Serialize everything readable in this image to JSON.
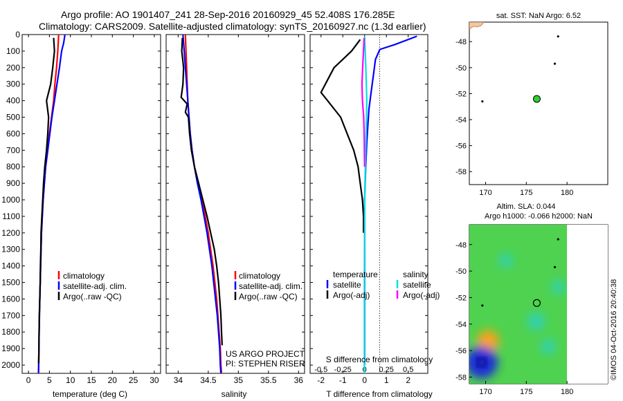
{
  "header": {
    "line1": "Argo profile: AO 1901407_241 28-Sep-2016 20160929_45 52.408S 176.285E",
    "line2": "Climatology: CARS2009. Satellite-adjusted climatology: synTS_20160927.nc (1.3d earlier)"
  },
  "colors": {
    "climatology": "#ff0000",
    "satellite": "#0000ff",
    "argo": "#000000",
    "salinity_satellite": "#00e0e0",
    "salinity_argo": "#ff00ff",
    "float_marker": "#33cc33"
  },
  "chart_data": [
    {
      "type": "line",
      "panel": "temperature",
      "xlabel": "temperature (deg C)",
      "ylabel": "",
      "xlim": [
        -1.5,
        31.5
      ],
      "ylim": [
        2050,
        0
      ],
      "xticks": [
        "0",
        "5",
        "10",
        "15",
        "20",
        "25",
        "30"
      ],
      "yticks": [
        "0",
        "100",
        "200",
        "300",
        "400",
        "500",
        "600",
        "700",
        "800",
        "900",
        "1000",
        "1100",
        "1200",
        "1300",
        "1400",
        "1500",
        "1600",
        "1700",
        "1800",
        "1900",
        "2000"
      ],
      "legend": [
        "climatology",
        "satellite-adj. clim.",
        "Argo(..raw -QC)"
      ],
      "series": [
        {
          "name": "climatology",
          "color": "#ff0000",
          "points": [
            [
              7.2,
              0
            ],
            [
              7.0,
              100
            ],
            [
              6.7,
              200
            ],
            [
              6.3,
              300
            ],
            [
              6.0,
              400
            ],
            [
              5.5,
              500
            ],
            [
              5.0,
              600
            ],
            [
              4.6,
              700
            ],
            [
              4.1,
              800
            ],
            [
              3.8,
              900
            ],
            [
              3.5,
              1000
            ],
            [
              3.3,
              1100
            ],
            [
              3.1,
              1200
            ],
            [
              3.0,
              1300
            ],
            [
              2.9,
              1400
            ],
            [
              2.8,
              1500
            ],
            [
              2.7,
              1600
            ],
            [
              2.6,
              1700
            ],
            [
              2.55,
              1800
            ],
            [
              2.5,
              1900
            ],
            [
              2.45,
              2000
            ],
            [
              2.4,
              2050
            ]
          ]
        },
        {
          "name": "satellite-adj. clim.",
          "color": "#0000ff",
          "points": [
            [
              8.7,
              0
            ],
            [
              8.4,
              50
            ],
            [
              7.9,
              100
            ],
            [
              7.4,
              200
            ],
            [
              6.8,
              300
            ],
            [
              6.2,
              400
            ],
            [
              5.6,
              500
            ],
            [
              5.1,
              600
            ],
            [
              4.6,
              700
            ],
            [
              4.1,
              800
            ],
            [
              3.8,
              900
            ],
            [
              3.5,
              1000
            ],
            [
              3.3,
              1100
            ],
            [
              3.1,
              1200
            ],
            [
              3.0,
              1300
            ],
            [
              2.9,
              1400
            ],
            [
              2.8,
              1500
            ],
            [
              2.7,
              1600
            ],
            [
              2.6,
              1700
            ],
            [
              2.55,
              1800
            ],
            [
              2.5,
              1900
            ],
            [
              2.45,
              2000
            ],
            [
              2.4,
              2050
            ]
          ]
        },
        {
          "name": "Argo(..raw -QC)",
          "color": "#000000",
          "points": [
            [
              6.0,
              20
            ],
            [
              6.2,
              100
            ],
            [
              5.8,
              200
            ],
            [
              5.3,
              300
            ],
            [
              4.3,
              400
            ],
            [
              4.8,
              500
            ],
            [
              4.6,
              600
            ],
            [
              4.3,
              700
            ],
            [
              3.9,
              800
            ],
            [
              3.6,
              900
            ],
            [
              3.4,
              1000
            ],
            [
              3.2,
              1100
            ],
            [
              3.0,
              1200
            ],
            [
              2.95,
              1300
            ],
            [
              2.85,
              1400
            ],
            [
              2.8,
              1500
            ],
            [
              2.7,
              1600
            ],
            [
              2.62,
              1700
            ],
            [
              2.55,
              1800
            ],
            [
              2.5,
              1900
            ],
            [
              2.45,
              1990
            ]
          ]
        }
      ]
    },
    {
      "type": "line",
      "panel": "salinity",
      "xlabel": "salinity",
      "ylabel": "",
      "xlim": [
        33.8,
        36.1
      ],
      "ylim": [
        2050,
        0
      ],
      "xticks": [
        "34",
        "34.5",
        "35",
        "35.5",
        "36"
      ],
      "legend": [
        "climatology",
        "satellite-adj. clim.",
        "Argo(..raw -QC)"
      ],
      "annotations": [
        "US ARGO PROJECT",
        "PI: STEPHEN RISER"
      ],
      "series": [
        {
          "name": "climatology",
          "color": "#ff0000",
          "points": [
            [
              34.12,
              0
            ],
            [
              34.13,
              100
            ],
            [
              34.14,
              200
            ],
            [
              34.15,
              300
            ],
            [
              34.16,
              400
            ],
            [
              34.18,
              500
            ],
            [
              34.2,
              600
            ],
            [
              34.23,
              700
            ],
            [
              34.27,
              800
            ],
            [
              34.33,
              900
            ],
            [
              34.39,
              1000
            ],
            [
              34.45,
              1100
            ],
            [
              34.5,
              1200
            ],
            [
              34.54,
              1300
            ],
            [
              34.58,
              1400
            ],
            [
              34.61,
              1500
            ],
            [
              34.64,
              1600
            ],
            [
              34.66,
              1700
            ],
            [
              34.68,
              1800
            ],
            [
              34.7,
              1900
            ],
            [
              34.71,
              2000
            ],
            [
              34.72,
              2050
            ]
          ]
        },
        {
          "name": "satellite-adj. clim.",
          "color": "#0000ff",
          "points": [
            [
              34.08,
              0
            ],
            [
              34.1,
              100
            ],
            [
              34.12,
              200
            ],
            [
              34.14,
              300
            ],
            [
              34.16,
              400
            ],
            [
              34.18,
              500
            ],
            [
              34.2,
              600
            ],
            [
              34.23,
              700
            ],
            [
              34.27,
              800
            ],
            [
              34.32,
              900
            ],
            [
              34.38,
              1000
            ],
            [
              34.43,
              1100
            ],
            [
              34.48,
              1200
            ],
            [
              34.52,
              1300
            ],
            [
              34.56,
              1400
            ],
            [
              34.59,
              1500
            ],
            [
              34.62,
              1600
            ],
            [
              34.65,
              1700
            ],
            [
              34.67,
              1800
            ],
            [
              34.69,
              1900
            ],
            [
              34.7,
              2000
            ],
            [
              34.71,
              2050
            ]
          ]
        },
        {
          "name": "Argo(..raw -QC)",
          "color": "#000000",
          "points": [
            [
              34.07,
              20
            ],
            [
              34.06,
              100
            ],
            [
              34.09,
              200
            ],
            [
              34.08,
              300
            ],
            [
              34.05,
              380
            ],
            [
              34.15,
              420
            ],
            [
              34.12,
              470
            ],
            [
              34.17,
              500
            ],
            [
              34.19,
              600
            ],
            [
              34.22,
              700
            ],
            [
              34.27,
              800
            ],
            [
              34.34,
              900
            ],
            [
              34.41,
              1000
            ],
            [
              34.48,
              1100
            ],
            [
              34.54,
              1200
            ],
            [
              34.6,
              1300
            ],
            [
              34.64,
              1400
            ],
            [
              34.67,
              1500
            ],
            [
              34.69,
              1600
            ],
            [
              34.71,
              1700
            ],
            [
              34.72,
              1800
            ],
            [
              34.73,
              1880
            ]
          ]
        }
      ]
    },
    {
      "type": "line",
      "panel": "difference",
      "xlabel": "T difference from climatology",
      "xlabel2": "S difference from climatology",
      "xlim": [
        -2.5,
        2.9
      ],
      "ylim": [
        2050,
        0
      ],
      "xticks": [
        "-2",
        "-1",
        "0",
        "1",
        "2"
      ],
      "s_ticks": [
        "-0.5",
        "-0.25",
        "0",
        "0.25",
        "0.5"
      ],
      "legend_temperature": [
        "temperature",
        "satellite",
        "Argo(-adj)"
      ],
      "legend_salinity": [
        "salinity",
        "satellite",
        "Argo(-adj)"
      ],
      "series": [
        {
          "name": "temperature satellite",
          "color": "#0000ff",
          "points": [
            [
              2.4,
              10
            ],
            [
              1.4,
              60
            ],
            [
              0.7,
              90
            ],
            [
              0.5,
              150
            ],
            [
              0.4,
              250
            ],
            [
              0.3,
              350
            ],
            [
              0.2,
              450
            ],
            [
              0.15,
              550
            ],
            [
              0.1,
              650
            ],
            [
              0.05,
              800
            ],
            [
              0.0,
              1000
            ],
            [
              0.0,
              1400
            ],
            [
              0.0,
              2000
            ]
          ]
        },
        {
          "name": "temperature Argo(-adj)",
          "color": "#000000",
          "points": [
            [
              -0.2,
              30
            ],
            [
              -0.6,
              100
            ],
            [
              -1.0,
              150
            ],
            [
              -1.4,
              200
            ],
            [
              -1.8,
              300
            ],
            [
              -2.0,
              350
            ],
            [
              -1.7,
              400
            ],
            [
              -1.1,
              500
            ],
            [
              -0.8,
              600
            ],
            [
              -0.5,
              700
            ],
            [
              -0.3,
              800
            ],
            [
              -0.2,
              900
            ],
            [
              -0.1,
              1000
            ],
            [
              -0.05,
              1100
            ],
            [
              -0.05,
              1200
            ]
          ]
        },
        {
          "name": "salinity satellite",
          "color": "#00e0e0",
          "points": [
            [
              0.0,
              10
            ],
            [
              0.03,
              100
            ],
            [
              0.07,
              250
            ],
            [
              0.1,
              400
            ],
            [
              0.08,
              550
            ],
            [
              0.05,
              700
            ],
            [
              0.02,
              900
            ],
            [
              0.0,
              1100
            ],
            [
              -0.01,
              1500
            ],
            [
              -0.01,
              2050
            ]
          ]
        },
        {
          "name": "salinity Argo(-adj)",
          "color": "#ff00ff",
          "points": [
            [
              -0.02,
              20
            ],
            [
              -0.05,
              100
            ],
            [
              -0.09,
              200
            ],
            [
              -0.12,
              300
            ],
            [
              -0.1,
              400
            ],
            [
              -0.04,
              500
            ],
            [
              -0.02,
              600
            ],
            [
              -0.01,
              700
            ],
            [
              0.0,
              800
            ]
          ]
        }
      ]
    },
    {
      "type": "scatter",
      "panel": "sst-map",
      "title": "sat. SST: NaN Argo: 6.52",
      "xlim": [
        168,
        185
      ],
      "ylim": [
        -59,
        -46.5
      ],
      "xticks": [
        "170",
        "175",
        "180"
      ],
      "yticks": [
        "-48",
        "-50",
        "-52",
        "-54",
        "-56",
        "-58"
      ],
      "float_position": [
        176.285,
        -52.408
      ],
      "points": [
        [
          169.6,
          -52.6
        ],
        [
          178.5,
          -49.7
        ],
        [
          178.9,
          -47.6
        ]
      ]
    },
    {
      "type": "heatmap",
      "panel": "sla-map",
      "title": "Altim. SLA: 0.044",
      "subtitle": "Argo h1000: -0.066 h2000: NaN",
      "xlim": [
        168,
        185
      ],
      "ylim": [
        -58.5,
        -46.5
      ],
      "xticks": [
        "170",
        "175",
        "180"
      ],
      "yticks": [
        "-48",
        "-50",
        "-52",
        "-54",
        "-56",
        "-58"
      ],
      "float_position": [
        176.285,
        -52.408
      ],
      "data_extent": [
        168,
        180
      ],
      "features": [
        {
          "kind": "high",
          "center": [
            170.3,
            -55.3
          ],
          "strength": 0.55
        },
        {
          "kind": "low",
          "center": [
            169.5,
            -56.9
          ],
          "strength": -0.95
        },
        {
          "kind": "low",
          "center": [
            176.2,
            -53.8
          ],
          "strength": -0.35
        },
        {
          "kind": "low",
          "center": [
            177.7,
            -55.7
          ],
          "strength": -0.25
        },
        {
          "kind": "low",
          "center": [
            172.5,
            -49.2
          ],
          "strength": -0.2
        },
        {
          "kind": "low",
          "center": [
            178.9,
            -51.2
          ],
          "strength": -0.2
        }
      ]
    }
  ],
  "credit": "©IMOS 04-Oct-2016 20:40:38"
}
